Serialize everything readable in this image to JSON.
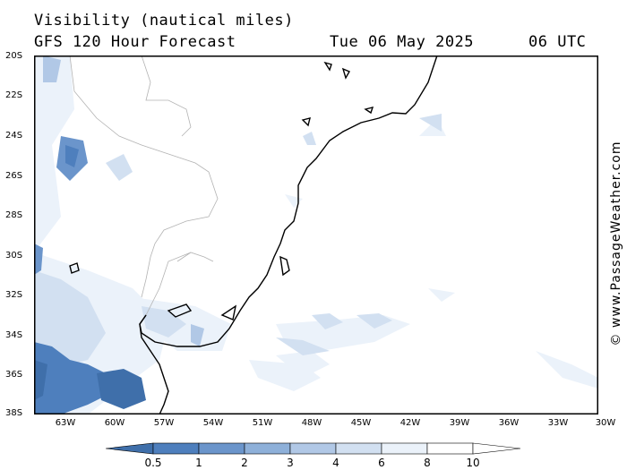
{
  "header": {
    "title": "Visibility (nautical miles)",
    "subtitle": "GFS 120 Hour Forecast",
    "date": "Tue 06 May 2025",
    "time": "06 UTC"
  },
  "map": {
    "lat_labels": [
      "20S",
      "22S",
      "24S",
      "26S",
      "28S",
      "30S",
      "32S",
      "34S",
      "36S",
      "38S"
    ],
    "lon_labels": [
      "63W",
      "60W",
      "57W",
      "54W",
      "51W",
      "48W",
      "45W",
      "42W",
      "39W",
      "36W",
      "33W",
      "30W"
    ]
  },
  "legend": {
    "labels": [
      "0.5",
      "1",
      "2",
      "3",
      "4",
      "6",
      "8",
      "10"
    ],
    "colors": [
      "#3f6faa",
      "#4e7fbd",
      "#6b95cb",
      "#8eb0d9",
      "#b1c8e6",
      "#d2e0f1",
      "#ebf2fa",
      "#ffffff"
    ]
  },
  "copyright": "© www.PassageWeather.com"
}
